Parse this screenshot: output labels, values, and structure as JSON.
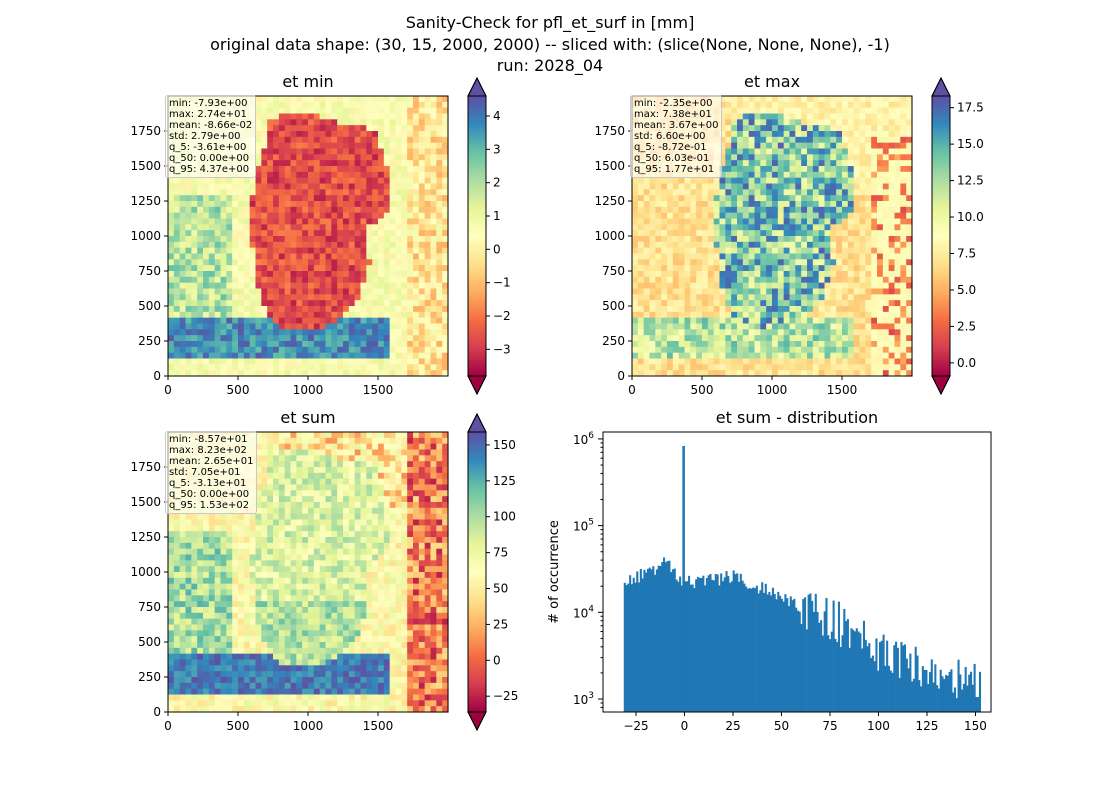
{
  "figure": {
    "title_lines": [
      "Sanity-Check for pfl_et_surf in [mm]",
      "original data shape: (30, 15, 2000, 2000) -- sliced with: (slice(None, None, None), -1)",
      "run: 2028_04"
    ]
  },
  "chart_data": [
    {
      "type": "heatmap",
      "title": "et min",
      "colormap": "Spectral",
      "xlim": [
        0,
        2000
      ],
      "ylim": [
        0,
        2000
      ],
      "xticks": [
        0,
        500,
        1000,
        1500
      ],
      "yticks": [
        0,
        250,
        500,
        750,
        1000,
        1250,
        1500,
        1750
      ],
      "colorbar": {
        "min": -3.8,
        "max": 4.6,
        "ticks": [
          4,
          3,
          2,
          1,
          0,
          -1,
          -2,
          -3
        ],
        "tick_labels": [
          "4",
          "3",
          "2",
          "1",
          "0",
          "−1",
          "−2",
          "−3"
        ],
        "extend": "both"
      },
      "stats": [
        "min: -7.93e+00",
        "max: 2.74e+01",
        "mean: -8.66e-02",
        "std: 2.79e+00",
        "q_5: -3.61e+00",
        "q_50: 0.00e+00",
        "q_95: 4.37e+00"
      ]
    },
    {
      "type": "heatmap",
      "title": "et max",
      "colormap": "Spectral",
      "xlim": [
        0,
        2000
      ],
      "ylim": [
        0,
        2000
      ],
      "xticks": [
        0,
        500,
        1000,
        1500
      ],
      "yticks": [
        0,
        250,
        500,
        750,
        1000,
        1250,
        1500,
        1750
      ],
      "colorbar": {
        "min": -0.9,
        "max": 18.3,
        "ticks": [
          17.5,
          15,
          12.5,
          10,
          7.5,
          5,
          2.5,
          0
        ],
        "tick_labels": [
          "17.5",
          "15.0",
          "12.5",
          "10.0",
          "7.5",
          "5.0",
          "2.5",
          "0.0"
        ],
        "extend": "both"
      },
      "stats": [
        "min: -2.35e+00",
        "max: 7.38e+01",
        "mean: 3.67e+00",
        "std: 6.60e+00",
        "q_5: -8.72e-01",
        "q_50: 6.03e-01",
        "q_95: 1.77e+01"
      ]
    },
    {
      "type": "heatmap",
      "title": "et sum",
      "colormap": "Spectral",
      "xlim": [
        0,
        2000
      ],
      "ylim": [
        0,
        2000
      ],
      "xticks": [
        0,
        500,
        1000,
        1500
      ],
      "yticks": [
        0,
        250,
        500,
        750,
        1000,
        1250,
        1500,
        1750
      ],
      "colorbar": {
        "min": -36,
        "max": 159,
        "ticks": [
          150,
          125,
          100,
          75,
          50,
          25,
          0,
          -25
        ],
        "tick_labels": [
          "150",
          "125",
          "100",
          "75",
          "50",
          "25",
          "0",
          "−25"
        ],
        "extend": "both"
      },
      "stats": [
        "min: -8.57e+01",
        "max: 8.23e+02",
        "mean: 2.65e+01",
        "std: 7.05e+01",
        "q_5: -3.13e+01",
        "q_50: 0.00e+00",
        "q_95: 1.53e+02"
      ]
    },
    {
      "type": "bar",
      "title": "et sum - distribution",
      "ylabel": "# of occurrence",
      "xlabel": "",
      "yscale": "log",
      "bar_color": "#1f77b4",
      "xlim": [
        -42,
        158
      ],
      "ylim_log10": [
        2.85,
        6.08
      ],
      "xticks": [
        -25,
        0,
        25,
        50,
        75,
        100,
        125,
        150
      ],
      "xtick_labels": [
        "−25",
        "0",
        "25",
        "50",
        "75",
        "100",
        "125",
        "150"
      ],
      "yticks_exp": [
        3,
        4,
        5,
        6
      ],
      "bin_start": -31.3,
      "bin_width": 0.92,
      "profile_points": [
        [
          -31,
          20000
        ],
        [
          -25,
          25000
        ],
        [
          -15,
          32000
        ],
        [
          -10,
          40000
        ],
        [
          -5,
          30000
        ],
        [
          -2,
          22000
        ],
        [
          0,
          22000
        ],
        [
          10,
          23000
        ],
        [
          25,
          26000
        ],
        [
          35,
          21000
        ],
        [
          50,
          15000
        ],
        [
          75,
          8000
        ],
        [
          100,
          4000
        ],
        [
          125,
          2300
        ],
        [
          153,
          1700
        ]
      ],
      "spike": {
        "x": -0.6,
        "count": 830000
      }
    }
  ]
}
